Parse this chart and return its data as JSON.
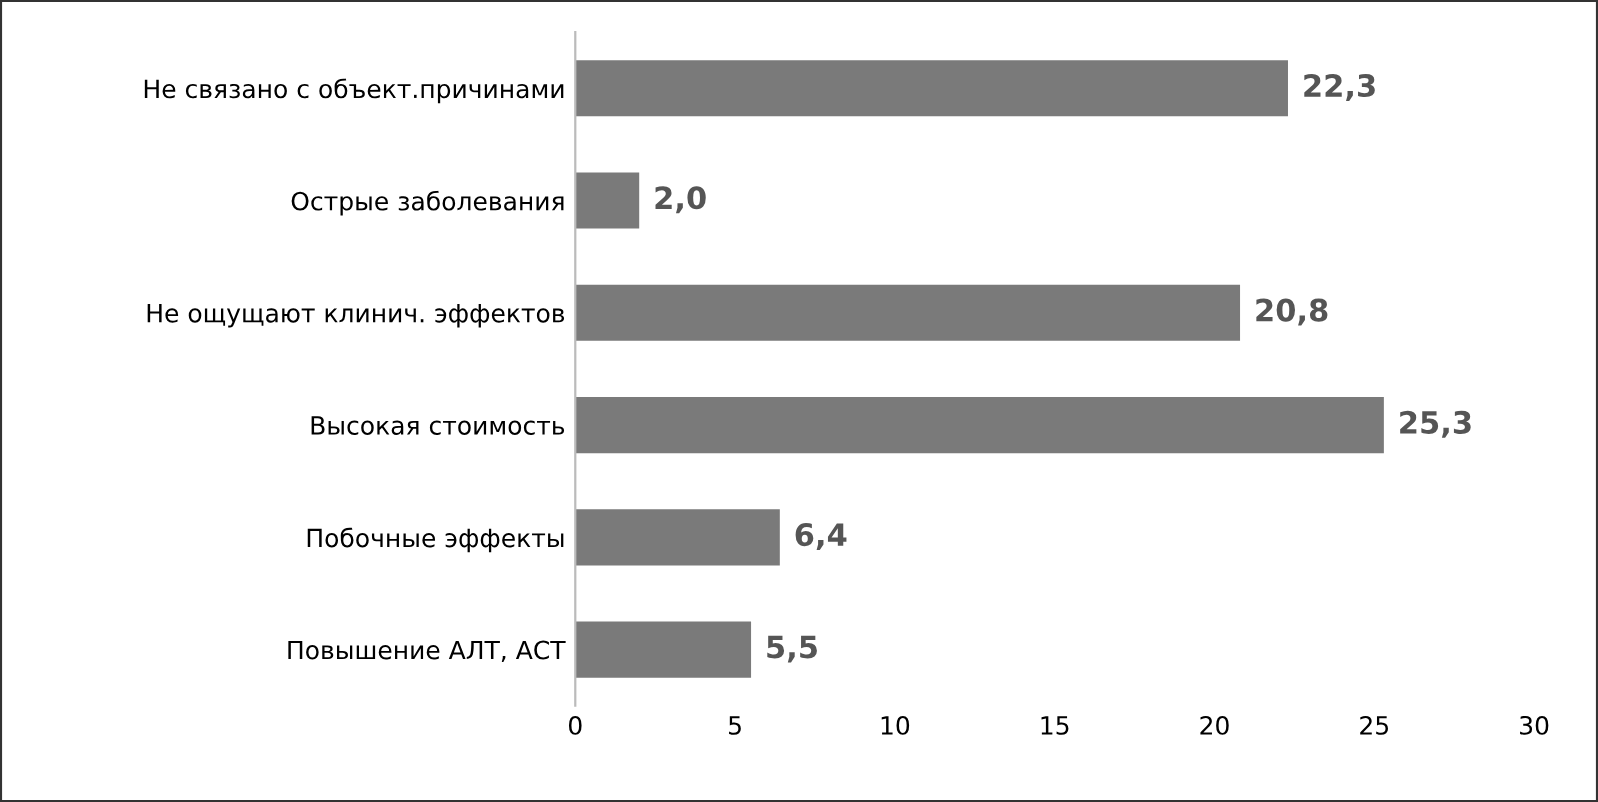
{
  "chart_data": {
    "type": "bar",
    "orientation": "horizontal",
    "categories": [
      "Не связано с объект.причинами",
      "Острые заболевания",
      "Не ощущают клинич. эффектов",
      "Высокая стоимость",
      "Побочные эффекты",
      "Повышение АЛТ, АСТ"
    ],
    "values": [
      22.3,
      2.0,
      20.8,
      25.3,
      6.4,
      5.5
    ],
    "value_labels": [
      "22,3",
      "2,0",
      "20,8",
      "25,3",
      "6,4",
      "5,5"
    ],
    "color": "#7a7a7a",
    "xlim": [
      0,
      30
    ],
    "xticks": [
      0,
      5,
      10,
      15,
      20,
      25,
      30
    ],
    "grid": false
  }
}
